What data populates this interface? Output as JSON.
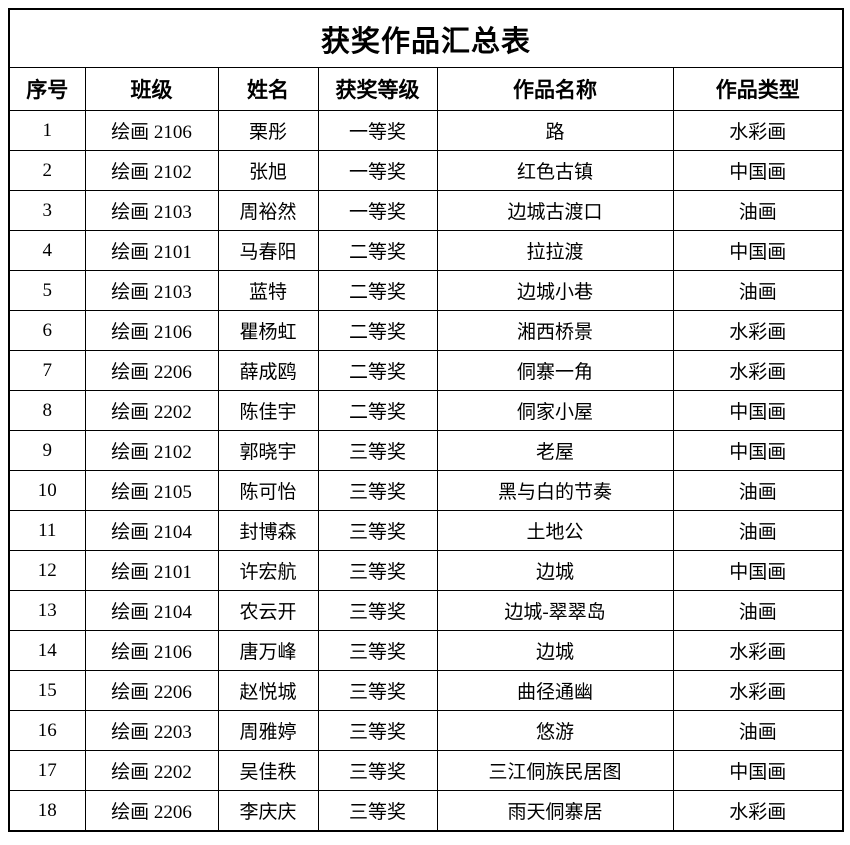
{
  "title": "获奖作品汇总表",
  "colors": {
    "border": "#000000",
    "text": "#000000",
    "background": "#ffffff"
  },
  "table": {
    "header_keys": [
      "no",
      "class",
      "name",
      "award",
      "work",
      "type"
    ],
    "headers": [
      "序号",
      "班级",
      "姓名",
      "获奖等级",
      "作品名称",
      "作品类型"
    ],
    "rows": [
      {
        "no": "1",
        "class": "绘画 2106",
        "name": "栗彤",
        "award": "一等奖",
        "work": "路",
        "type": "水彩画"
      },
      {
        "no": "2",
        "class": "绘画 2102",
        "name": "张旭",
        "award": "一等奖",
        "work": "红色古镇",
        "type": "中国画"
      },
      {
        "no": "3",
        "class": "绘画 2103",
        "name": "周裕然",
        "award": "一等奖",
        "work": "边城古渡口",
        "type": "油画"
      },
      {
        "no": "4",
        "class": "绘画 2101",
        "name": "马春阳",
        "award": "二等奖",
        "work": "拉拉渡",
        "type": "中国画"
      },
      {
        "no": "5",
        "class": "绘画 2103",
        "name": "蓝特",
        "award": "二等奖",
        "work": "边城小巷",
        "type": "油画"
      },
      {
        "no": "6",
        "class": "绘画 2106",
        "name": "瞿杨虹",
        "award": "二等奖",
        "work": "湘西桥景",
        "type": "水彩画"
      },
      {
        "no": "7",
        "class": "绘画 2206",
        "name": "薛成鸥",
        "award": "二等奖",
        "work": "侗寨一角",
        "type": "水彩画"
      },
      {
        "no": "8",
        "class": "绘画 2202",
        "name": "陈佳宇",
        "award": "二等奖",
        "work": "侗家小屋",
        "type": "中国画"
      },
      {
        "no": "9",
        "class": "绘画 2102",
        "name": "郭晓宇",
        "award": "三等奖",
        "work": "老屋",
        "type": "中国画"
      },
      {
        "no": "10",
        "class": "绘画 2105",
        "name": "陈可怡",
        "award": "三等奖",
        "work": "黑与白的节奏",
        "type": "油画"
      },
      {
        "no": "11",
        "class": "绘画 2104",
        "name": "封博森",
        "award": "三等奖",
        "work": "土地公",
        "type": "油画"
      },
      {
        "no": "12",
        "class": "绘画 2101",
        "name": "许宏航",
        "award": "三等奖",
        "work": "边城",
        "type": "中国画"
      },
      {
        "no": "13",
        "class": "绘画 2104",
        "name": "农云开",
        "award": "三等奖",
        "work": "边城-翠翠岛",
        "type": "油画"
      },
      {
        "no": "14",
        "class": "绘画 2106",
        "name": "唐万峰",
        "award": "三等奖",
        "work": "边城",
        "type": "水彩画"
      },
      {
        "no": "15",
        "class": "绘画 2206",
        "name": "赵悦城",
        "award": "三等奖",
        "work": "曲径通幽",
        "type": "水彩画"
      },
      {
        "no": "16",
        "class": "绘画 2203",
        "name": "周雅婷",
        "award": "三等奖",
        "work": "悠游",
        "type": "油画"
      },
      {
        "no": "17",
        "class": "绘画 2202",
        "name": "吴佳秩",
        "award": "三等奖",
        "work": "三江侗族民居图",
        "type": "中国画"
      },
      {
        "no": "18",
        "class": "绘画 2206",
        "name": "李庆庆",
        "award": "三等奖",
        "work": "雨天侗寨居",
        "type": "水彩画"
      }
    ]
  }
}
